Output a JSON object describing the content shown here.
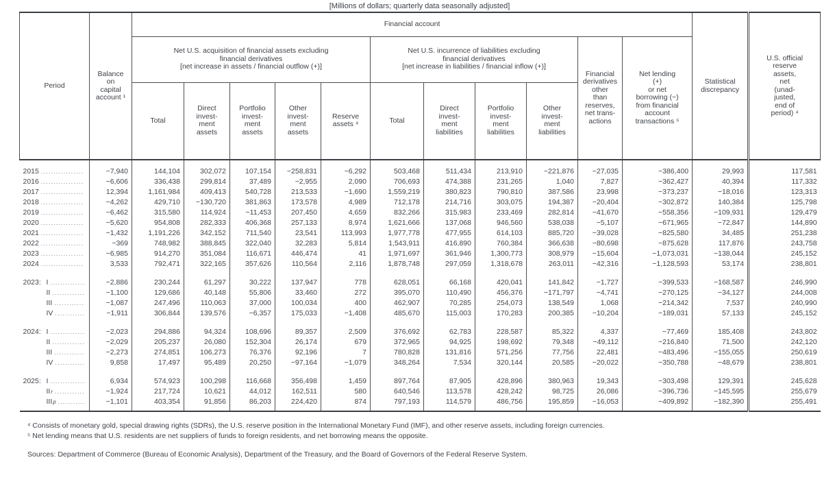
{
  "title": "[Millions of dollars; quarterly data seasonally adjusted]",
  "header": {
    "period": "Period",
    "balance": "Balance\non\ncapital\naccount ¹",
    "financial_account": "Financial account",
    "acquisition_group": "Net U.S. acquisition of financial assets excluding\nfinancial derivatives\n[net increase in assets / financial outflow (+)]",
    "incurrence_group": "Net U.S. incurrence of liabilities excluding\nfinancial derivatives\n[net increase in liabilities / financial inflow (+)]",
    "sub": [
      "Total",
      "Direct\ninvest-\nment\nassets",
      "Portfolio\ninvest-\nment\nassets",
      "Other\ninvest-\nment\nassets",
      "Reserve\nassets ⁴",
      "Total",
      "Direct\ninvest-\nment\nliabilities",
      "Portfolio\ninvest-\nment\nliabilities",
      "Other\ninvest-\nment\nliabilities"
    ],
    "derivatives": "Financial\nderivatives\nother\nthan\nreserves,\nnet trans-\nactions",
    "net_lending": "Net lending\n(+)\nor net\nborrowing (−)\nfrom financial\naccount\ntransactions ⁵",
    "stat_disc": "Statistical\ndiscrepancy",
    "official_reserve": "U.S. official\nreserve\nassets,\nnet\n(unad-\njusted,\nend of\nperiod) ⁴"
  },
  "rows": [
    {
      "y": "2015",
      "q": "",
      "sup": "",
      "first": true,
      "gap": false,
      "v": [
        "−7,940",
        "144,104",
        "302,072",
        "107,154",
        "−258,831",
        "−6,292",
        "503,468",
        "511,434",
        "213,910",
        "−221,876",
        "−27,035",
        "−386,400",
        "29,993",
        "117,581"
      ]
    },
    {
      "y": "2016",
      "q": "",
      "sup": "",
      "first": false,
      "gap": false,
      "v": [
        "−6,606",
        "336,438",
        "299,814",
        "37,489",
        "−2,955",
        "2,090",
        "706,693",
        "474,388",
        "231,265",
        "1,040",
        "7,827",
        "−362,427",
        "40,394",
        "117,332"
      ]
    },
    {
      "y": "2017",
      "q": "",
      "sup": "",
      "first": false,
      "gap": false,
      "v": [
        "12,394",
        "1,161,984",
        "409,413",
        "540,728",
        "213,533",
        "−1,690",
        "1,559,219",
        "380,823",
        "790,810",
        "387,586",
        "23,998",
        "−373,237",
        "−18,016",
        "123,313"
      ]
    },
    {
      "y": "2018",
      "q": "",
      "sup": "",
      "first": false,
      "gap": false,
      "v": [
        "−4,262",
        "429,710",
        "−130,720",
        "381,863",
        "173,578",
        "4,989",
        "712,178",
        "214,716",
        "303,075",
        "194,387",
        "−20,404",
        "−302,872",
        "140,384",
        "125,798"
      ]
    },
    {
      "y": "2019",
      "q": "",
      "sup": "",
      "first": false,
      "gap": false,
      "v": [
        "−6,462",
        "315,580",
        "114,924",
        "−11,453",
        "207,450",
        "4,659",
        "832,266",
        "315,983",
        "233,469",
        "282,814",
        "−41,670",
        "−558,356",
        "−109,931",
        "129,479"
      ]
    },
    {
      "y": "2020",
      "q": "",
      "sup": "",
      "first": false,
      "gap": false,
      "v": [
        "−5,620",
        "954,808",
        "282,333",
        "406,368",
        "257,133",
        "8,974",
        "1,621,666",
        "137,068",
        "946,560",
        "538,038",
        "−5,107",
        "−671,965",
        "−72,847",
        "144,890"
      ]
    },
    {
      "y": "2021",
      "q": "",
      "sup": "",
      "first": false,
      "gap": false,
      "v": [
        "−1,432",
        "1,191,226",
        "342,152",
        "711,540",
        "23,541",
        "113,993",
        "1,977,778",
        "477,955",
        "614,103",
        "885,720",
        "−39,028",
        "−825,580",
        "34,485",
        "251,238"
      ]
    },
    {
      "y": "2022",
      "q": "",
      "sup": "",
      "first": false,
      "gap": false,
      "v": [
        "−369",
        "748,982",
        "388,845",
        "322,040",
        "32,283",
        "5,814",
        "1,543,911",
        "416,890",
        "760,384",
        "366,638",
        "−80,698",
        "−875,628",
        "117,876",
        "243,758"
      ]
    },
    {
      "y": "2023",
      "q": "",
      "sup": "",
      "first": false,
      "gap": false,
      "v": [
        "−6,985",
        "914,270",
        "351,084",
        "116,671",
        "446,474",
        "41",
        "1,971,697",
        "361,946",
        "1,300,773",
        "308,979",
        "−15,604",
        "−1,073,031",
        "−138,044",
        "245,152"
      ]
    },
    {
      "y": "2024",
      "q": "",
      "sup": "",
      "first": false,
      "gap": false,
      "v": [
        "3,533",
        "792,471",
        "322,165",
        "357,626",
        "110,564",
        "2,116",
        "1,878,748",
        "297,059",
        "1,318,678",
        "263,011",
        "−42,316",
        "−1,128,593",
        "53,174",
        "238,801"
      ]
    },
    {
      "y": "2023:",
      "q": "I",
      "sup": "",
      "first": false,
      "gap": true,
      "v": [
        "−2,886",
        "230,244",
        "61,297",
        "30,222",
        "137,947",
        "778",
        "628,051",
        "66,168",
        "420,041",
        "141,842",
        "−1,727",
        "−399,533",
        "−168,587",
        "246,990"
      ]
    },
    {
      "y": "",
      "q": "II",
      "sup": "",
      "first": false,
      "gap": false,
      "v": [
        "−1,100",
        "129,686",
        "40,148",
        "55,806",
        "33,460",
        "272",
        "395,070",
        "110,490",
        "456,376",
        "−171,797",
        "−4,741",
        "−270,125",
        "−34,127",
        "244,008"
      ]
    },
    {
      "y": "",
      "q": "III",
      "sup": "",
      "first": false,
      "gap": false,
      "v": [
        "−1,087",
        "247,496",
        "110,063",
        "37,000",
        "100,034",
        "400",
        "462,907",
        "70,285",
        "254,073",
        "138,549",
        "1,068",
        "−214,342",
        "7,537",
        "240,990"
      ]
    },
    {
      "y": "",
      "q": "IV",
      "sup": "",
      "first": false,
      "gap": false,
      "v": [
        "−1,911",
        "306,844",
        "139,576",
        "−6,357",
        "175,033",
        "−1,408",
        "485,670",
        "115,003",
        "170,283",
        "200,385",
        "−10,204",
        "−189,031",
        "57,133",
        "245,152"
      ]
    },
    {
      "y": "2024:",
      "q": "I",
      "sup": "",
      "first": false,
      "gap": true,
      "v": [
        "−2,023",
        "294,886",
        "94,324",
        "108,696",
        "89,357",
        "2,509",
        "376,692",
        "62,783",
        "228,587",
        "85,322",
        "4,337",
        "−77,469",
        "185,408",
        "243,802"
      ]
    },
    {
      "y": "",
      "q": "II",
      "sup": "",
      "first": false,
      "gap": false,
      "v": [
        "−2,029",
        "205,237",
        "26,080",
        "152,304",
        "26,174",
        "679",
        "372,965",
        "94,925",
        "198,692",
        "79,348",
        "−49,112",
        "−216,840",
        "71,500",
        "242,120"
      ]
    },
    {
      "y": "",
      "q": "III",
      "sup": "",
      "first": false,
      "gap": false,
      "v": [
        "−2,273",
        "274,851",
        "106,273",
        "76,376",
        "92,196",
        "7",
        "780,828",
        "131,816",
        "571,256",
        "77,756",
        "22,481",
        "−483,496",
        "−155,055",
        "250,619"
      ]
    },
    {
      "y": "",
      "q": "IV",
      "sup": "",
      "first": false,
      "gap": false,
      "v": [
        "9,858",
        "17,497",
        "95,489",
        "20,250",
        "−97,164",
        "−1,079",
        "348,264",
        "7,534",
        "320,144",
        "20,585",
        "−20,022",
        "−350,788",
        "−48,679",
        "238,801"
      ]
    },
    {
      "y": "2025:",
      "q": "I",
      "sup": "",
      "first": false,
      "gap": true,
      "v": [
        "6,934",
        "574,923",
        "100,298",
        "116,668",
        "356,498",
        "1,459",
        "897,764",
        "87,905",
        "428,896",
        "380,963",
        "19,343",
        "−303,498",
        "129,391",
        "245,628"
      ]
    },
    {
      "y": "",
      "q": "II",
      "sup": "r",
      "first": false,
      "gap": false,
      "v": [
        "−1,924",
        "217,724",
        "10,621",
        "44,012",
        "162,511",
        "580",
        "640,546",
        "113,578",
        "428,242",
        "98,725",
        "26,086",
        "−396,736",
        "−145,595",
        "255,679"
      ]
    },
    {
      "y": "",
      "q": "III",
      "sup": "p",
      "first": false,
      "gap": false,
      "v": [
        "−1,101",
        "403,354",
        "91,856",
        "86,203",
        "224,420",
        "874",
        "797,193",
        "114,579",
        "486,756",
        "195,859",
        "−16,053",
        "−409,892",
        "−182,390",
        "255,491"
      ]
    }
  ],
  "footnotes": [
    "⁴ Consists of monetary gold, special drawing rights (SDRs), the U.S. reserve position in the International Monetary Fund (IMF), and other reserve assets, including foreign currencies.",
    "⁵ Net lending means that U.S. residents are net suppliers of funds to foreign residents, and net borrowing means the opposite."
  ],
  "sources": "Sources: Department of Commerce (Bureau of Economic Analysis), Department of the Treasury, and the Board of Governors of the Federal Reserve System."
}
